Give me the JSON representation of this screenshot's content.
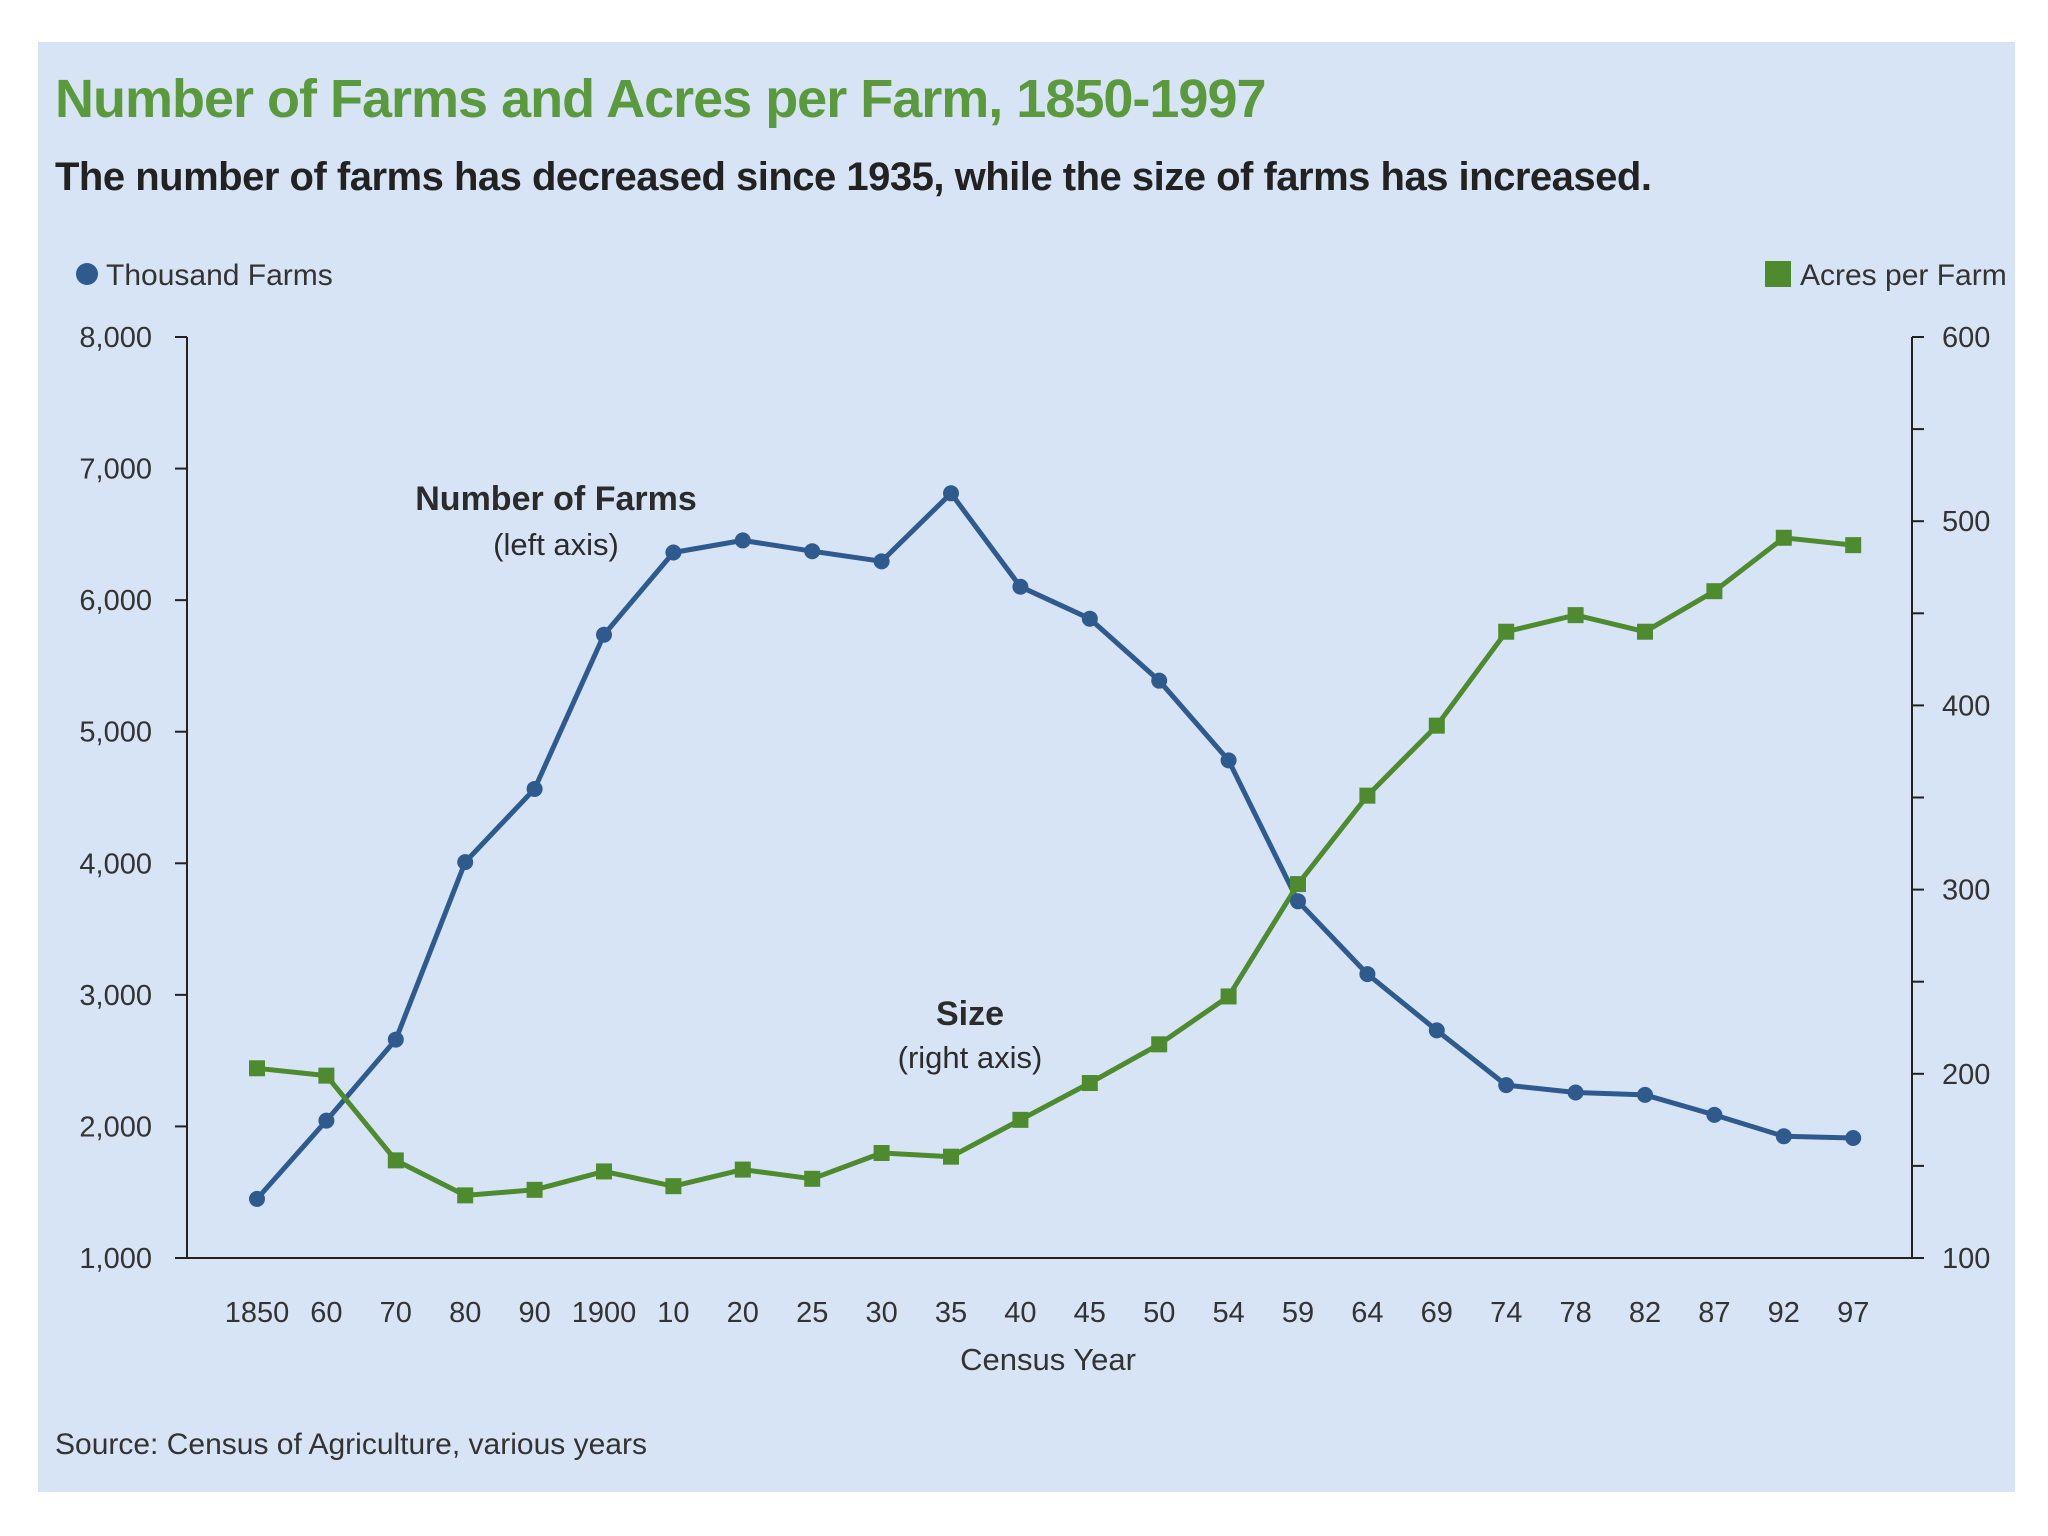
{
  "chart_data": {
    "type": "line",
    "title": "Number of Farms and Acres per Farm, 1850-1997",
    "subtitle": "The number of farms has decreased since 1935, while the size of farms has increased.",
    "source": "Source: Census of Agriculture, various years",
    "xlabel": "Census Year",
    "categories": [
      "1850",
      "60",
      "70",
      "80",
      "90",
      "1900",
      "10",
      "20",
      "25",
      "30",
      "35",
      "40",
      "45",
      "50",
      "54",
      "59",
      "64",
      "69",
      "74",
      "78",
      "82",
      "87",
      "92",
      "97"
    ],
    "left_axis": {
      "label": "Thousand Farms",
      "ylim": [
        1000,
        8000
      ],
      "ticks": [
        "1,000",
        "2,000",
        "3,000",
        "4,000",
        "5,000",
        "6,000",
        "7,000",
        "8,000"
      ]
    },
    "right_axis": {
      "label": "Acres per Farm",
      "ylim": [
        100,
        600
      ],
      "ticks": [
        "100",
        "200",
        "300",
        "400",
        "500",
        "600"
      ]
    },
    "series": [
      {
        "name": "Thousand Farms",
        "axis": "left",
        "color": "#2e5a8e",
        "marker": "circle",
        "values": [
          1449,
          2044,
          2660,
          4009,
          4565,
          5737,
          6362,
          6454,
          6372,
          6295,
          6812,
          6102,
          5859,
          5388,
          4782,
          3711,
          3158,
          2730,
          2314,
          2258,
          2240,
          2088,
          1925,
          1912
        ]
      },
      {
        "name": "Acres per Farm",
        "axis": "right",
        "color": "#4e8a2e",
        "marker": "square",
        "values": [
          203,
          199,
          153,
          134,
          137,
          147,
          139,
          148,
          143,
          157,
          155,
          175,
          195,
          216,
          242,
          303,
          351,
          389,
          440,
          449,
          440,
          462,
          491,
          487
        ]
      }
    ],
    "annotations": {
      "farms_title": "Number of Farms",
      "farms_sub": "(left axis)",
      "size_title": "Size",
      "size_sub": "(right axis)"
    },
    "legend": {
      "left": "Thousand Farms",
      "right": "Acres per Farm"
    }
  }
}
